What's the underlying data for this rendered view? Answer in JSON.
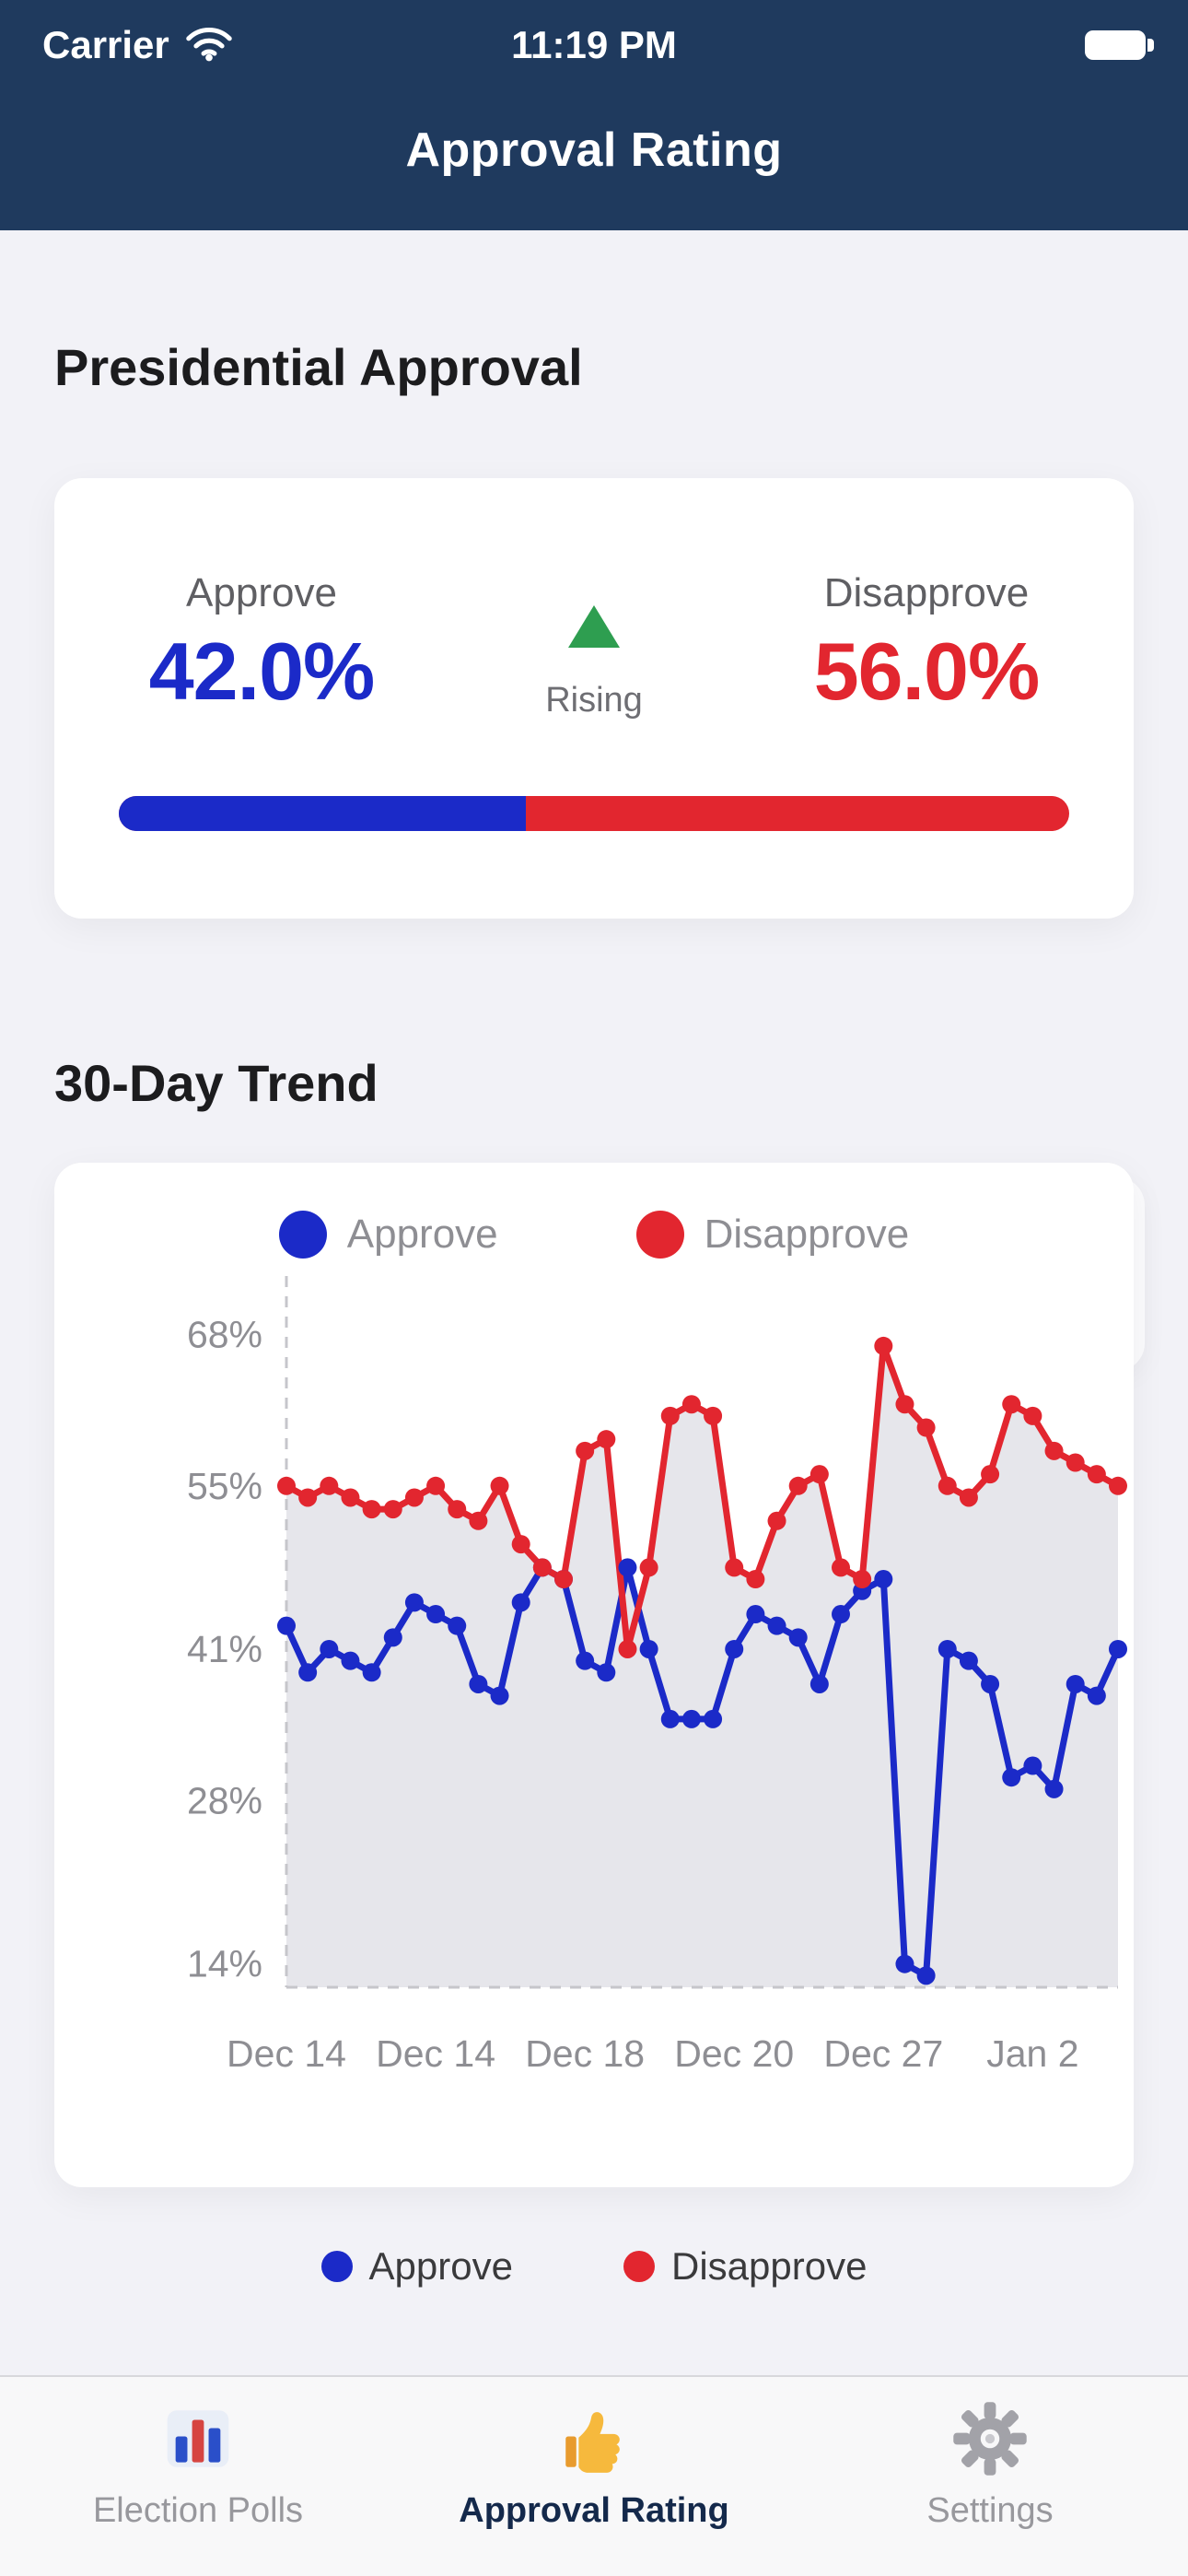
{
  "status_bar": {
    "carrier": "Carrier",
    "time": "11:19 PM"
  },
  "header": {
    "title": "Approval Rating"
  },
  "approval_card": {
    "section_heading": "Presidential Approval",
    "approve_label": "Approve",
    "approve_value": "42.0%",
    "approve_pct": 42.0,
    "approve_color": "#1B2AC8",
    "trend_direction": "Rising",
    "trend_arrow_color": "#2E9E50",
    "disapprove_label": "Disapprove",
    "disapprove_value": "56.0%",
    "disapprove_pct": 56.0,
    "disapprove_color": "#E2262F"
  },
  "trend_card": {
    "section_heading": "30-Day Trend",
    "legend": [
      {
        "label": "Approve",
        "color": "#1B2AC8"
      },
      {
        "label": "Disapprove",
        "color": "#E2262F"
      }
    ]
  },
  "chart_data": {
    "type": "line",
    "title": "30-Day Trend",
    "y_ticks": [
      "68%",
      "55%",
      "41%",
      "28%",
      "14%"
    ],
    "y_tick_values": [
      68,
      55,
      41,
      28,
      14
    ],
    "ylim": [
      12,
      73
    ],
    "x_labels": [
      "Dec 14",
      "Dec 14",
      "Dec 18",
      "Dec 20",
      "Dec 27",
      "Jan 2"
    ],
    "x_label_indices": [
      0,
      7,
      14,
      21,
      28,
      35
    ],
    "series": [
      {
        "name": "Approve",
        "color": "#1B2AC8",
        "values": [
          43,
          39,
          41,
          40,
          39,
          42,
          45,
          44,
          43,
          38,
          37,
          45,
          48,
          47,
          40,
          39,
          48,
          41,
          35,
          35,
          35,
          41,
          44,
          43,
          42,
          38,
          44,
          46,
          47,
          14,
          13,
          41,
          40,
          38,
          30,
          31,
          29,
          38,
          37,
          41
        ]
      },
      {
        "name": "Disapprove",
        "color": "#E2262F",
        "values": [
          55,
          54,
          55,
          54,
          53,
          53,
          54,
          55,
          53,
          52,
          55,
          50,
          48,
          47,
          58,
          59,
          41,
          48,
          61,
          62,
          61,
          48,
          47,
          52,
          55,
          56,
          48,
          47,
          67,
          62,
          60,
          55,
          54,
          56,
          62,
          61,
          58,
          57,
          56,
          55
        ]
      }
    ],
    "fill_color": "#E6E6EB",
    "axis_color": "#C6C6CB",
    "tick_label_color": "#8E8E93",
    "grid": false,
    "legend_position": "top"
  },
  "footer_legend": [
    {
      "label": "Approve",
      "color": "#1B2AC8"
    },
    {
      "label": "Disapprove",
      "color": "#E2262F"
    }
  ],
  "tab_bar": {
    "active_color": "#14294B",
    "inactive_color": "#98989D",
    "items": [
      {
        "label": "Election Polls",
        "active": false
      },
      {
        "label": "Approval Rating",
        "active": true
      },
      {
        "label": "Settings",
        "active": false
      }
    ]
  }
}
